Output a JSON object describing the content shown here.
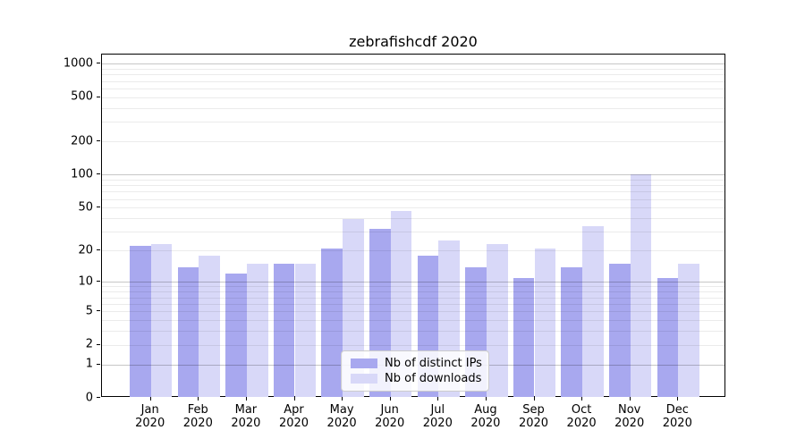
{
  "title": "zebrafishcdf 2020",
  "chart_data": {
    "type": "bar",
    "title": "zebrafishcdf 2020",
    "categories": [
      "Jan 2020",
      "Feb 2020",
      "Mar 2020",
      "Apr 2020",
      "May 2020",
      "Jun 2020",
      "Jul 2020",
      "Aug 2020",
      "Sep 2020",
      "Oct 2020",
      "Nov 2020",
      "Dec 2020"
    ],
    "series": [
      {
        "name": "Nb of distinct IPs",
        "color": "#a8a8ef",
        "values": [
          22,
          14,
          12,
          15,
          21,
          32,
          18,
          14,
          11,
          14,
          15,
          11
        ]
      },
      {
        "name": "Nb of downloads",
        "color": "#d8d8f8",
        "values": [
          23,
          18,
          15,
          15,
          39,
          47,
          25,
          23,
          21,
          34,
          101,
          15
        ]
      }
    ],
    "xlabel": "",
    "ylabel": "",
    "yscale": "log1p",
    "yticks": [
      0,
      1,
      2,
      5,
      10,
      20,
      50,
      100,
      200,
      500,
      1000
    ],
    "major_grid_values": [
      1,
      10,
      100,
      1000
    ],
    "ylim": [
      0,
      1210
    ],
    "grid": "horizontal",
    "legend_position": "lower-center-inside"
  }
}
